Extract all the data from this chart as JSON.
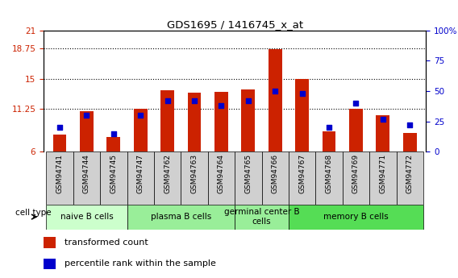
{
  "title": "GDS1695 / 1416745_x_at",
  "samples": [
    "GSM94741",
    "GSM94744",
    "GSM94745",
    "GSM94747",
    "GSM94762",
    "GSM94763",
    "GSM94764",
    "GSM94765",
    "GSM94766",
    "GSM94767",
    "GSM94768",
    "GSM94769",
    "GSM94771",
    "GSM94772"
  ],
  "transformed_count": [
    8.1,
    11.0,
    7.8,
    11.25,
    13.6,
    13.3,
    13.4,
    13.7,
    18.7,
    15.0,
    8.5,
    11.25,
    10.5,
    8.3
  ],
  "percentile_rank": [
    20,
    30,
    15,
    30,
    42,
    42,
    38,
    42,
    50,
    48,
    20,
    40,
    27,
    22
  ],
  "ylim_left": [
    6,
    21
  ],
  "ylim_right": [
    0,
    100
  ],
  "yticks_left": [
    6,
    11.25,
    15,
    18.75,
    21
  ],
  "yticks_right": [
    0,
    25,
    50,
    75,
    100
  ],
  "ytick_labels_left": [
    "6",
    "11.25",
    "15",
    "18.75",
    "21"
  ],
  "ytick_labels_right": [
    "0",
    "25",
    "50",
    "75",
    "100%"
  ],
  "bar_color": "#cc2200",
  "dot_color": "#0000cc",
  "cell_groups": [
    {
      "label": "naive B cells",
      "start": 0,
      "end": 2,
      "color": "#ccffcc"
    },
    {
      "label": "plasma B cells",
      "start": 3,
      "end": 6,
      "color": "#88ee88"
    },
    {
      "label": "germinal center B\ncells",
      "start": 7,
      "end": 8,
      "color": "#88ee88"
    },
    {
      "label": "memory B cells",
      "start": 9,
      "end": 13,
      "color": "#44dd44"
    }
  ],
  "tick_color_left": "#cc2200",
  "tick_color_right": "#0000cc",
  "xtick_bg": "#d0d0d0",
  "hgrid_vals": [
    11.25,
    15,
    18.75
  ]
}
